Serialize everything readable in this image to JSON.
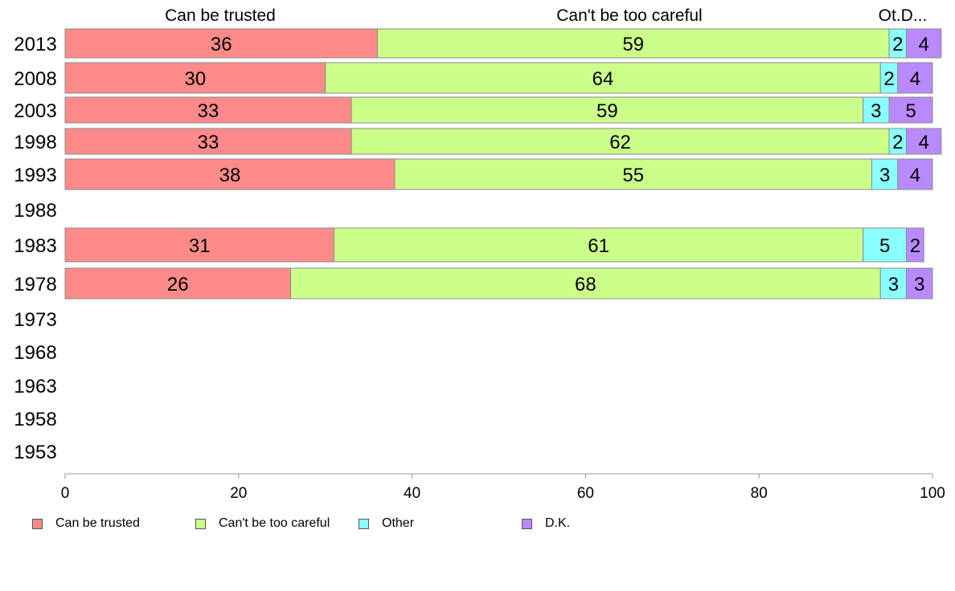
{
  "chart_data": {
    "type": "bar",
    "orientation": "horizontal",
    "stacked": true,
    "categories": [
      "2013",
      "2008",
      "2003",
      "1998",
      "1993",
      "1988",
      "1983",
      "1978",
      "1973",
      "1968",
      "1963",
      "1958",
      "1953"
    ],
    "series": [
      {
        "name": "Can be trusted",
        "color": "#ff8a8a",
        "values": [
          36,
          30,
          33,
          33,
          38,
          null,
          31,
          26,
          null,
          null,
          null,
          null,
          null
        ]
      },
      {
        "name": "Can't be too careful",
        "color": "#ccff8a",
        "values": [
          59,
          64,
          59,
          62,
          55,
          null,
          61,
          68,
          null,
          null,
          null,
          null,
          null
        ]
      },
      {
        "name": "Other",
        "color": "#8affff",
        "values": [
          2,
          2,
          3,
          2,
          3,
          null,
          5,
          3,
          null,
          null,
          null,
          null,
          null
        ]
      },
      {
        "name": "D.K.",
        "color": "#b98aff",
        "values": [
          4,
          4,
          5,
          4,
          4,
          null,
          2,
          3,
          null,
          null,
          null,
          null,
          null
        ]
      }
    ],
    "top_labels": [
      "Can be trusted",
      "Can't be too careful",
      "Ot.D..."
    ],
    "xlim": [
      0,
      100
    ],
    "xticks": [
      0,
      20,
      40,
      60,
      80,
      100
    ],
    "legend_position": "bottom"
  }
}
